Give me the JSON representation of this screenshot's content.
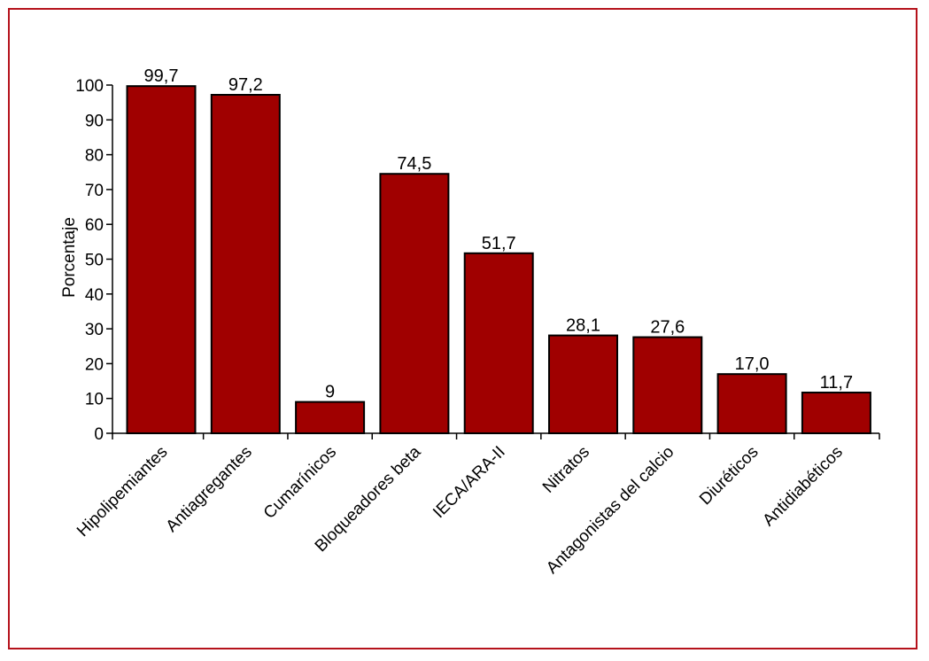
{
  "chart_data": {
    "type": "bar",
    "title": "",
    "xlabel": "",
    "ylabel": "Porcentaje",
    "ylim": [
      0,
      100
    ],
    "yticks": [
      0,
      10,
      20,
      30,
      40,
      50,
      60,
      70,
      80,
      90,
      100
    ],
    "grid": false,
    "legend": "none",
    "categories": [
      "Hipolipemiantes",
      "Antiagregantes",
      "Cumarínicos",
      "Bloqueadores beta",
      "IECA/ARA-II",
      "Nitratos",
      "Antagonistas del calcio",
      "Diuréticos",
      "Antidiabéticos"
    ],
    "values": [
      99.7,
      97.2,
      9,
      74.5,
      51.7,
      28.1,
      27.6,
      17.0,
      11.7
    ],
    "value_labels": [
      "99,7",
      "97,2",
      "9",
      "74,5",
      "51,7",
      "28,1",
      "27,6",
      "17,0",
      "11,7"
    ],
    "colors": {
      "bar_fill": "#a00000",
      "bar_stroke": "#000000",
      "frame": "#b5121b",
      "axis": "#000000"
    }
  }
}
